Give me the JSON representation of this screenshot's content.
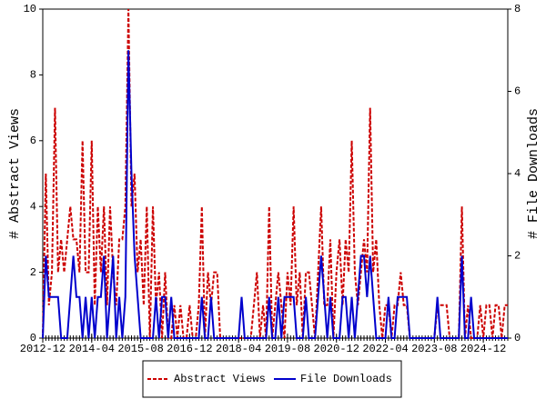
{
  "chart_data": {
    "type": "line",
    "y_label": "# Abstract Views",
    "y2_label": "# File Downloads",
    "x": [
      "2012-12",
      "2013-01",
      "2013-02",
      "2013-03",
      "2013-04",
      "2013-05",
      "2013-06",
      "2013-07",
      "2013-08",
      "2013-09",
      "2013-10",
      "2013-11",
      "2013-12",
      "2014-01",
      "2014-02",
      "2014-03",
      "2014-04",
      "2014-05",
      "2014-06",
      "2014-07",
      "2014-08",
      "2014-09",
      "2014-10",
      "2014-11",
      "2014-12",
      "2015-01",
      "2015-02",
      "2015-03",
      "2015-04",
      "2015-05",
      "2015-06",
      "2015-07",
      "2015-08",
      "2015-09",
      "2015-10",
      "2015-11",
      "2015-12",
      "2016-01",
      "2016-02",
      "2016-03",
      "2016-04",
      "2016-05",
      "2016-06",
      "2016-07",
      "2016-08",
      "2016-09",
      "2016-10",
      "2016-11",
      "2016-12",
      "2017-01",
      "2017-02",
      "2017-03",
      "2017-04",
      "2017-05",
      "2017-06",
      "2017-07",
      "2017-08",
      "2017-09",
      "2017-10",
      "2017-11",
      "2017-12",
      "2018-01",
      "2018-02",
      "2018-03",
      "2018-04",
      "2018-05",
      "2018-06",
      "2018-07",
      "2018-08",
      "2018-09",
      "2018-10",
      "2018-11",
      "2018-12",
      "2019-01",
      "2019-02",
      "2019-03",
      "2019-04",
      "2019-05",
      "2019-06",
      "2019-07",
      "2019-08",
      "2019-09",
      "2019-10",
      "2019-11",
      "2019-12",
      "2020-01",
      "2020-02",
      "2020-03",
      "2020-04",
      "2020-05",
      "2020-06",
      "2020-07",
      "2020-08",
      "2020-09",
      "2020-10",
      "2020-11",
      "2020-12",
      "2021-01",
      "2021-02",
      "2021-03",
      "2021-04",
      "2021-05",
      "2021-06",
      "2021-07",
      "2021-08",
      "2021-09",
      "2021-10",
      "2021-11",
      "2021-12",
      "2022-01",
      "2022-02",
      "2022-03",
      "2022-04",
      "2022-05",
      "2022-06",
      "2022-07",
      "2022-08",
      "2022-09",
      "2022-10",
      "2022-11",
      "2022-12",
      "2023-01",
      "2023-02",
      "2023-03",
      "2023-04",
      "2023-05",
      "2023-06",
      "2023-07",
      "2023-08",
      "2023-09",
      "2023-10",
      "2023-11",
      "2023-12",
      "2024-01",
      "2024-02",
      "2024-03",
      "2024-04",
      "2024-05",
      "2024-06",
      "2024-07",
      "2024-08",
      "2024-09",
      "2024-10",
      "2024-11",
      "2024-12",
      "2025-01",
      "2025-02",
      "2025-03",
      "2025-04",
      "2025-05",
      "2025-06",
      "2025-07",
      "2025-08"
    ],
    "xticks": [
      "2012-12",
      "2014-04",
      "2015-08",
      "2016-12",
      "2018-04",
      "2019-08",
      "2020-12",
      "2022-04",
      "2023-08",
      "2024-12"
    ],
    "series": [
      {
        "name": "Abstract Views",
        "color": "#cc0000",
        "dash": true,
        "axis": "y",
        "values": [
          0,
          5,
          1,
          2,
          7,
          2,
          3,
          2,
          3,
          4,
          3,
          3,
          2,
          6,
          2,
          2,
          6,
          1,
          4,
          2,
          4,
          1,
          4,
          2,
          1,
          3,
          3,
          4,
          10,
          4,
          5,
          2,
          3,
          1,
          4,
          0,
          4,
          1,
          2,
          0,
          2,
          0,
          0,
          1,
          0,
          1,
          0,
          0,
          1,
          0,
          0,
          1,
          4,
          0,
          2,
          1,
          2,
          2,
          0,
          0,
          0,
          0,
          0,
          0,
          0,
          0,
          0,
          0,
          0,
          1,
          2,
          0,
          1,
          0,
          4,
          0,
          1,
          2,
          1,
          0,
          2,
          1,
          4,
          1,
          2,
          0,
          2,
          2,
          1,
          0,
          2,
          4,
          1,
          1,
          3,
          0,
          2,
          3,
          1,
          3,
          2,
          6,
          2,
          1,
          2,
          3,
          2,
          7,
          2,
          3,
          1,
          0,
          1,
          1,
          0,
          1,
          1,
          2,
          1,
          1,
          0,
          0,
          0,
          0,
          0,
          0,
          0,
          0,
          0,
          1,
          1,
          1,
          1,
          0,
          0,
          0,
          0,
          4,
          0,
          1,
          0,
          0,
          0,
          1,
          0,
          1,
          1,
          0,
          1,
          1,
          0,
          1,
          1
        ]
      },
      {
        "name": "File Downloads",
        "color": "#0000cc",
        "dash": false,
        "axis": "y2",
        "values": [
          0,
          2,
          1,
          1,
          1,
          1,
          0,
          0,
          0,
          1,
          2,
          1,
          1,
          0,
          1,
          0,
          1,
          0,
          1,
          1,
          2,
          0,
          1,
          2,
          0,
          1,
          0,
          1,
          7,
          4,
          2,
          1,
          0,
          0,
          0,
          0,
          0,
          1,
          0,
          1,
          1,
          0,
          1,
          0,
          0,
          0,
          0,
          0,
          0,
          0,
          0,
          0,
          1,
          0,
          0,
          1,
          0,
          0,
          0,
          0,
          0,
          0,
          0,
          0,
          0,
          1,
          0,
          0,
          0,
          0,
          0,
          0,
          0,
          0,
          1,
          0,
          0,
          1,
          0,
          1,
          1,
          1,
          1,
          0,
          0,
          0,
          1,
          0,
          0,
          0,
          1,
          2,
          1,
          0,
          1,
          0,
          0,
          0,
          1,
          1,
          0,
          1,
          0,
          1,
          2,
          2,
          1,
          2,
          1,
          0,
          0,
          0,
          0,
          1,
          0,
          0,
          1,
          1,
          1,
          1,
          0,
          0,
          0,
          0,
          0,
          0,
          0,
          0,
          0,
          1,
          0,
          0,
          0,
          0,
          0,
          0,
          0,
          2,
          0,
          0,
          1,
          0,
          0,
          0,
          0,
          0,
          0,
          0,
          0,
          0,
          0,
          0,
          0
        ]
      }
    ],
    "ylim": [
      0,
      10
    ],
    "yticks": [
      0,
      2,
      4,
      6,
      8,
      10
    ],
    "y2lim": [
      0,
      8
    ],
    "y2ticks": [
      0,
      2,
      4,
      6,
      8
    ],
    "legend": "bottom"
  }
}
